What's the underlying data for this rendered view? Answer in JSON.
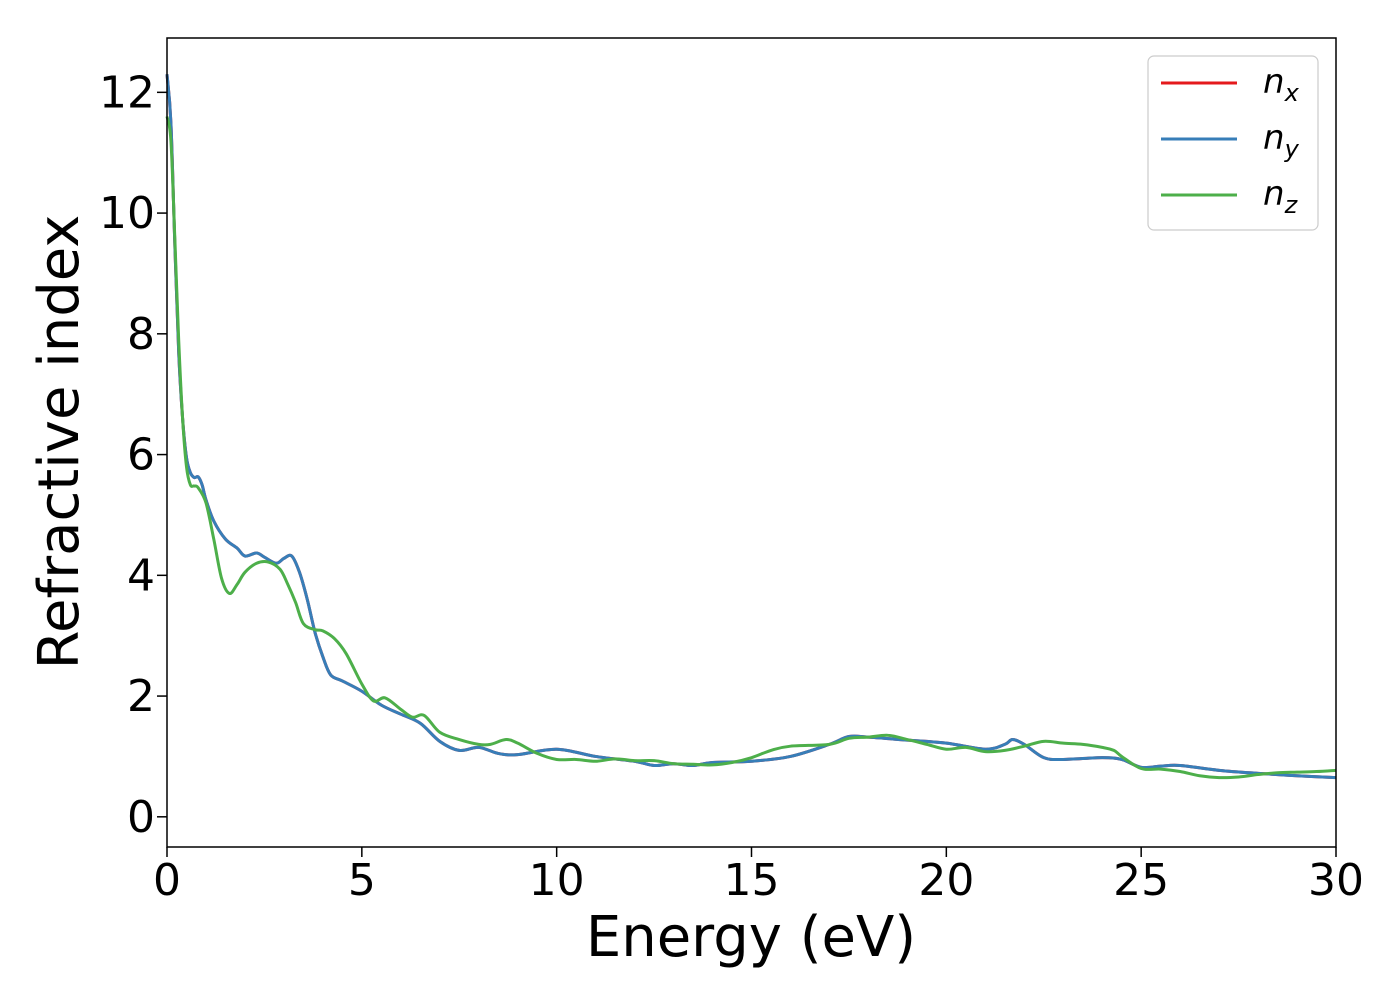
{
  "chart_data": {
    "type": "line",
    "xlabel": "Energy (eV)",
    "ylabel": "Refractive index",
    "xlim": [
      0,
      30
    ],
    "ylim": [
      -0.5,
      12.9
    ],
    "xticks": [
      "0",
      "5",
      "10",
      "15",
      "20",
      "25",
      "30"
    ],
    "yticks": [
      "0",
      "2",
      "4",
      "6",
      "8",
      "10",
      "12"
    ],
    "grid": false,
    "legend_position": "top-right",
    "series": [
      {
        "name": "n_x",
        "legend_base": "n",
        "legend_sub": "x",
        "color": "#e41a1c",
        "x": [
          0,
          0.1,
          0.2,
          0.3,
          0.4,
          0.5,
          0.6,
          0.7,
          0.8,
          0.9,
          1.0,
          1.2,
          1.5,
          1.8,
          2.0,
          2.3,
          2.5,
          2.8,
          3.0,
          3.2,
          3.4,
          3.6,
          3.8,
          4.0,
          4.2,
          4.5,
          5.0,
          5.5,
          6.0,
          6.5,
          7.0,
          7.5,
          8.0,
          8.5,
          9.0,
          10.0,
          11.0,
          12.0,
          12.5,
          13.0,
          13.5,
          14.0,
          15.0,
          16.0,
          17.0,
          17.5,
          18.0,
          19.0,
          20.0,
          21.0,
          21.5,
          21.7,
          22.0,
          22.5,
          23.0,
          24.0,
          24.5,
          25.0,
          25.5,
          26.0,
          27.0,
          28.0,
          29.0,
          30.0
        ],
        "y": [
          12.3,
          11.5,
          9.5,
          7.7,
          6.6,
          5.95,
          5.7,
          5.62,
          5.63,
          5.5,
          5.25,
          4.9,
          4.6,
          4.45,
          4.32,
          4.37,
          4.3,
          4.2,
          4.28,
          4.32,
          4.05,
          3.6,
          3.05,
          2.65,
          2.35,
          2.25,
          2.08,
          1.85,
          1.7,
          1.55,
          1.25,
          1.1,
          1.15,
          1.05,
          1.03,
          1.12,
          1.0,
          0.92,
          0.85,
          0.88,
          0.85,
          0.9,
          0.92,
          1.0,
          1.2,
          1.33,
          1.32,
          1.27,
          1.22,
          1.12,
          1.2,
          1.28,
          1.2,
          0.98,
          0.95,
          0.98,
          0.95,
          0.82,
          0.84,
          0.85,
          0.77,
          0.72,
          0.68,
          0.65
        ]
      },
      {
        "name": "n_y",
        "legend_base": "n",
        "legend_sub": "y",
        "color": "#377eb8",
        "x": [
          0,
          0.1,
          0.2,
          0.3,
          0.4,
          0.5,
          0.6,
          0.7,
          0.8,
          0.9,
          1.0,
          1.2,
          1.5,
          1.8,
          2.0,
          2.3,
          2.5,
          2.8,
          3.0,
          3.2,
          3.4,
          3.6,
          3.8,
          4.0,
          4.2,
          4.5,
          5.0,
          5.5,
          6.0,
          6.5,
          7.0,
          7.5,
          8.0,
          8.5,
          9.0,
          10.0,
          11.0,
          12.0,
          12.5,
          13.0,
          13.5,
          14.0,
          15.0,
          16.0,
          17.0,
          17.5,
          18.0,
          19.0,
          20.0,
          21.0,
          21.5,
          21.7,
          22.0,
          22.5,
          23.0,
          24.0,
          24.5,
          25.0,
          25.5,
          26.0,
          27.0,
          28.0,
          29.0,
          30.0
        ],
        "y": [
          12.3,
          11.5,
          9.5,
          7.7,
          6.6,
          5.95,
          5.7,
          5.62,
          5.63,
          5.5,
          5.25,
          4.9,
          4.6,
          4.45,
          4.32,
          4.37,
          4.3,
          4.2,
          4.28,
          4.32,
          4.05,
          3.6,
          3.05,
          2.65,
          2.35,
          2.25,
          2.08,
          1.85,
          1.7,
          1.55,
          1.25,
          1.1,
          1.15,
          1.05,
          1.03,
          1.12,
          1.0,
          0.92,
          0.85,
          0.88,
          0.85,
          0.9,
          0.92,
          1.0,
          1.2,
          1.33,
          1.32,
          1.27,
          1.22,
          1.12,
          1.2,
          1.28,
          1.2,
          0.98,
          0.95,
          0.98,
          0.95,
          0.82,
          0.84,
          0.85,
          0.77,
          0.72,
          0.68,
          0.65
        ]
      },
      {
        "name": "n_z",
        "legend_base": "n",
        "legend_sub": "z",
        "color": "#4daf4a",
        "x": [
          0,
          0.1,
          0.2,
          0.3,
          0.4,
          0.5,
          0.6,
          0.7,
          0.8,
          1.0,
          1.2,
          1.4,
          1.6,
          1.8,
          2.0,
          2.3,
          2.6,
          2.9,
          3.1,
          3.3,
          3.5,
          3.8,
          4.0,
          4.3,
          4.6,
          5.0,
          5.3,
          5.6,
          6.0,
          6.3,
          6.6,
          7.0,
          7.5,
          8.0,
          8.3,
          8.7,
          9.0,
          9.5,
          10.0,
          10.5,
          11.0,
          11.5,
          12.0,
          12.5,
          13.0,
          13.5,
          14.0,
          14.5,
          15.0,
          15.5,
          16.0,
          17.0,
          17.5,
          18.0,
          18.5,
          19.0,
          19.5,
          20.0,
          20.5,
          21.0,
          21.5,
          22.0,
          22.5,
          23.0,
          23.5,
          24.0,
          24.3,
          24.5,
          25.0,
          25.5,
          26.0,
          26.5,
          27.0,
          27.5,
          28.0,
          28.5,
          29.0,
          29.5,
          30.0
        ],
        "y": [
          11.6,
          11.2,
          9.6,
          7.9,
          6.6,
          5.8,
          5.5,
          5.48,
          5.45,
          5.2,
          4.6,
          3.95,
          3.7,
          3.85,
          4.05,
          4.2,
          4.22,
          4.1,
          3.85,
          3.55,
          3.2,
          3.1,
          3.08,
          2.95,
          2.7,
          2.2,
          1.92,
          1.97,
          1.78,
          1.65,
          1.68,
          1.4,
          1.28,
          1.2,
          1.2,
          1.28,
          1.22,
          1.05,
          0.95,
          0.95,
          0.92,
          0.96,
          0.93,
          0.93,
          0.88,
          0.87,
          0.86,
          0.9,
          0.98,
          1.1,
          1.17,
          1.2,
          1.3,
          1.32,
          1.35,
          1.28,
          1.2,
          1.12,
          1.15,
          1.08,
          1.1,
          1.17,
          1.25,
          1.22,
          1.2,
          1.15,
          1.1,
          1.0,
          0.8,
          0.79,
          0.75,
          0.68,
          0.65,
          0.66,
          0.7,
          0.73,
          0.74,
          0.75,
          0.77
        ]
      }
    ]
  }
}
